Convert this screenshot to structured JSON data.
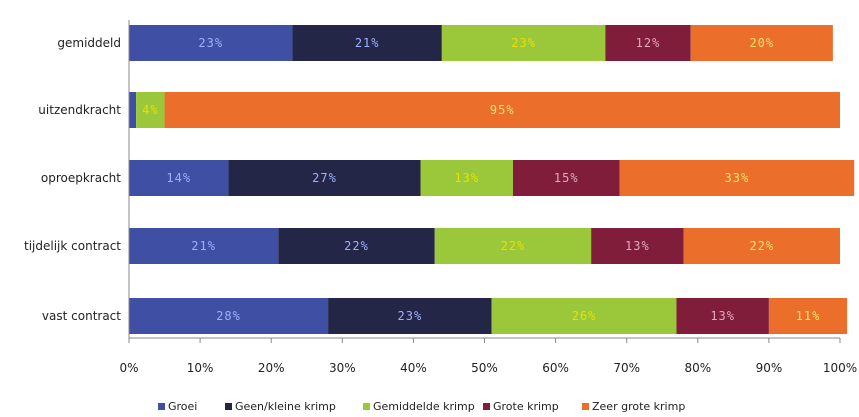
{
  "chart_data": {
    "type": "bar",
    "orientation": "horizontal",
    "stacked": "percent",
    "categories": [
      "gemiddeld",
      "uitzendkracht",
      "oproepkracht",
      "tijdelijk contract",
      "vast contract"
    ],
    "series": [
      {
        "name": "Groei",
        "color": "#3f4fa3",
        "values": [
          23,
          1,
          14,
          21,
          28
        ],
        "labels": [
          "23%",
          "",
          "14%",
          "21%",
          "28%"
        ],
        "label_color": "#9fb0ff"
      },
      {
        "name": "Geen/kleine krimp",
        "color": "#232647",
        "values": [
          21,
          0,
          27,
          22,
          23
        ],
        "labels": [
          "21%",
          "",
          "27%",
          "22%",
          "23%"
        ],
        "label_color": "#9fb0ff"
      },
      {
        "name": "Gemiddelde krimp",
        "color": "#9bc83a",
        "values": [
          23,
          4,
          13,
          22,
          26
        ],
        "labels": [
          "23%",
          "4%",
          "13%",
          "22%",
          "26%"
        ],
        "label_color": "#e9e000"
      },
      {
        "name": "Grote krimp",
        "color": "#7f1d3a",
        "values": [
          12,
          0,
          15,
          13,
          13
        ],
        "labels": [
          "12%",
          "",
          "15%",
          "13%",
          "13%"
        ],
        "label_color": "#e4a8bf"
      },
      {
        "name": "Zeer grote krimp",
        "color": "#ec6e2b",
        "values": [
          20,
          95,
          33,
          22,
          11
        ],
        "labels": [
          "20%",
          "95%",
          "33%",
          "22%",
          "11%"
        ],
        "label_color": "#ffe36a"
      }
    ],
    "xticks": [
      "0%",
      "10%",
      "20%",
      "30%",
      "40%",
      "50%",
      "60%",
      "70%",
      "80%",
      "90%",
      "100%"
    ],
    "xlim": [
      0,
      100
    ],
    "grid": false,
    "legend_position": "bottom"
  }
}
